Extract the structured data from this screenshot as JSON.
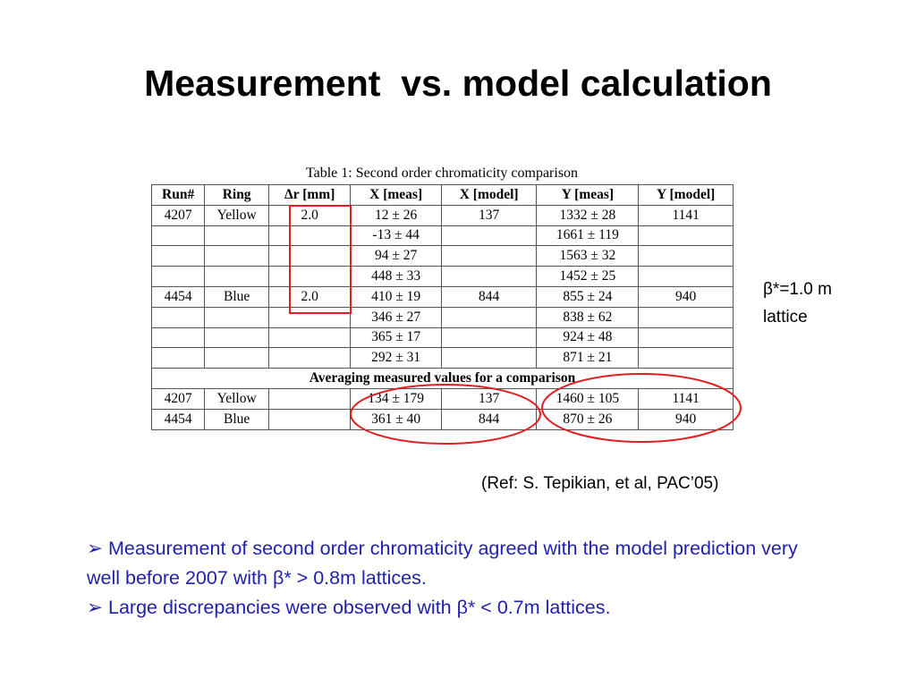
{
  "title": "Measurement  vs. model calculation",
  "table": {
    "caption": "Table 1: Second order chromaticity comparison",
    "headers": [
      "Run#",
      "Ring",
      "Δr [mm]",
      "X [meas]",
      "X [model]",
      "Y [meas]",
      "Y [model]"
    ],
    "rows": [
      [
        "4207",
        "Yellow",
        "2.0",
        "12 ± 26",
        "137",
        "1332 ± 28",
        "1141"
      ],
      [
        null,
        null,
        null,
        "-13 ± 44",
        null,
        "1661 ± 119",
        null
      ],
      [
        null,
        null,
        null,
        "94 ± 27",
        null,
        "1563 ± 32",
        null
      ],
      [
        null,
        null,
        null,
        "448 ± 33",
        null,
        "1452 ± 25",
        null
      ],
      [
        "4454",
        "Blue",
        "2.0",
        "410 ± 19",
        "844",
        "855 ± 24",
        "940"
      ],
      [
        null,
        null,
        null,
        "346 ± 27",
        null,
        "838 ± 62",
        null
      ],
      [
        null,
        null,
        null,
        "365 ± 17",
        null,
        "924 ± 48",
        null
      ],
      [
        null,
        null,
        null,
        "292 ± 31",
        null,
        "871 ± 21",
        null
      ]
    ],
    "section": "Averaging measured values for a comparison",
    "average_rows": [
      [
        "4207",
        "Yellow",
        null,
        "134 ± 179",
        "137",
        "1460 ± 105",
        "1141"
      ],
      [
        "4454",
        "Blue",
        null,
        "361 ± 40",
        "844",
        "870 ± 26",
        "940"
      ]
    ]
  },
  "side_note": [
    "β*=1.0 m",
    "lattice"
  ],
  "reference": "(Ref: S. Tepikian, et al, PAC’05)",
  "bullets": [
    "Measurement of second order chromaticity agreed with the model prediction very well before 2007 with β* > 0.8m lattices.",
    "Large discrepancies were observed with β* < 0.7m lattices."
  ]
}
